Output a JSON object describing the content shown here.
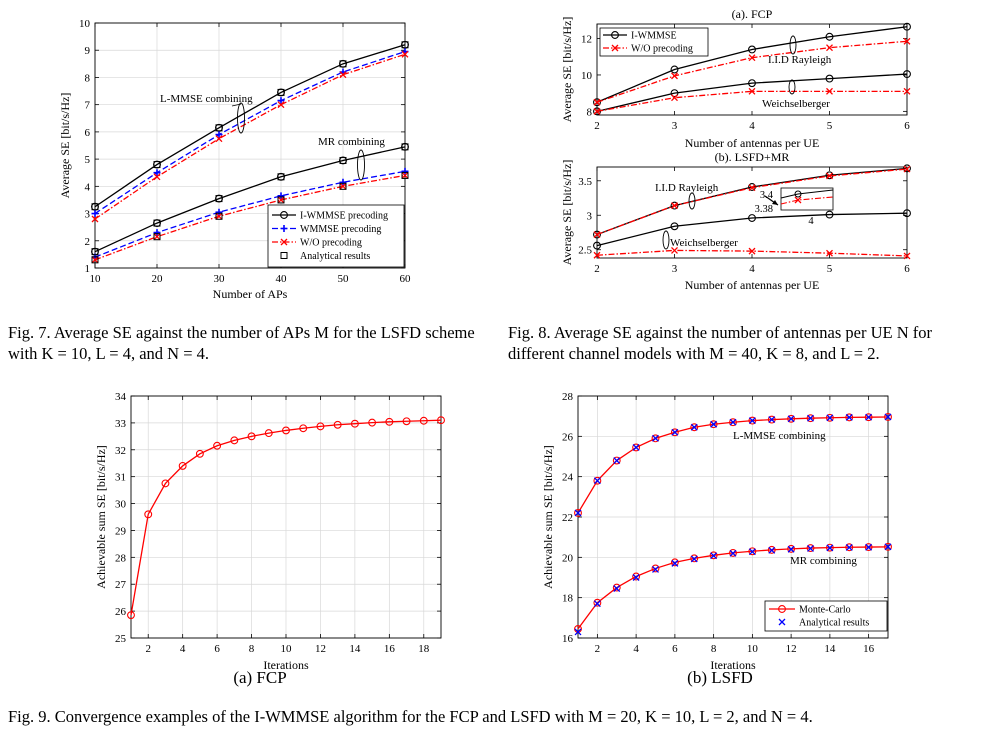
{
  "captions": {
    "fig7": "Fig. 7.  Average SE against the number of APs M for the LSFD scheme with K = 10, L = 4, and N = 4.",
    "fig8": "Fig. 8.  Average SE against the number of antennas per UE N for different channel models with M = 40, K = 8, and L = 2.",
    "fig9": "Fig. 9.  Convergence examples of the I-WMMSE algorithm for the FCP and LSFD with M = 20, K = 10, L = 2, and N = 4.",
    "fig9a": "(a)  FCP",
    "fig9b": "(b)  LSFD"
  },
  "colors": {
    "black": "#000000",
    "blue": "#0000ff",
    "red": "#ff0000"
  },
  "chart_data": [
    {
      "id": "fig7",
      "type": "line",
      "title": "",
      "xlabel": "Number of APs",
      "ylabel": "Average SE [bit/s/Hz]",
      "x": [
        10,
        20,
        30,
        40,
        50,
        60
      ],
      "xlim": [
        10,
        60
      ],
      "ylim": [
        1,
        10
      ],
      "xticks": [
        10,
        20,
        30,
        40,
        50,
        60
      ],
      "yticks": [
        1,
        2,
        3,
        4,
        5,
        6,
        7,
        8,
        9,
        10
      ],
      "grid": true,
      "legend": "bottom-right",
      "legend_entries": [
        "I-WMMSE precoding",
        "WMMSE precoding",
        "W/O precoding",
        "Analytical results"
      ],
      "annotations": [
        "L-MMSE combining",
        "MR combining"
      ],
      "series": [
        {
          "name": "I-WMMSE precoding",
          "group": "L-MMSE combining",
          "color": "#000000",
          "marker": "o",
          "dash": "solid",
          "values": [
            3.25,
            4.8,
            6.15,
            7.45,
            8.5,
            9.2
          ]
        },
        {
          "name": "WMMSE precoding",
          "group": "L-MMSE combining",
          "color": "#0000ff",
          "marker": "+",
          "dash": "dashed",
          "values": [
            3.0,
            4.5,
            5.9,
            7.15,
            8.2,
            8.95
          ]
        },
        {
          "name": "W/O precoding",
          "group": "L-MMSE combining",
          "color": "#ff0000",
          "marker": "x",
          "dash": "dashdot",
          "values": [
            2.8,
            4.35,
            5.75,
            7.0,
            8.1,
            8.85
          ]
        },
        {
          "name": "I-WMMSE precoding",
          "group": "MR combining",
          "color": "#000000",
          "marker": "o",
          "dash": "solid",
          "values": [
            1.6,
            2.65,
            3.55,
            4.35,
            4.95,
            5.45
          ]
        },
        {
          "name": "WMMSE precoding",
          "group": "MR combining",
          "color": "#0000ff",
          "marker": "+",
          "dash": "dashed",
          "values": [
            1.4,
            2.3,
            3.05,
            3.65,
            4.15,
            4.55
          ]
        },
        {
          "name": "W/O precoding",
          "group": "MR combining",
          "color": "#ff0000",
          "marker": "x",
          "dash": "dashdot",
          "values": [
            1.3,
            2.15,
            2.9,
            3.5,
            4.0,
            4.4
          ]
        }
      ],
      "analytical_markers": [
        {
          "name": "Analytical results",
          "values": [
            3.25,
            4.8,
            6.15,
            7.45,
            8.5,
            9.2
          ]
        },
        {
          "name": "Analytical results",
          "values": [
            1.6,
            2.65,
            3.55,
            4.35,
            4.95,
            5.45
          ]
        },
        {
          "name": "Analytical results",
          "values": [
            1.3,
            2.15,
            2.9,
            3.5,
            4.0,
            4.4
          ]
        }
      ]
    },
    {
      "id": "fig8a",
      "type": "line",
      "title": "(a).  FCP",
      "xlabel": "Number of antennas per UE",
      "ylabel": "Average SE [bit/s/Hz]",
      "x": [
        2,
        3,
        4,
        5,
        6
      ],
      "xlim": [
        2,
        6
      ],
      "ylim": [
        7.8,
        12.8
      ],
      "xticks": [
        2,
        3,
        4,
        5,
        6
      ],
      "yticks": [
        8,
        10,
        12
      ],
      "grid": false,
      "legend": "top-left",
      "legend_entries": [
        "I-WMMSE",
        "W/O precoding"
      ],
      "annotations": [
        "I.I.D Rayleigh",
        "Weichselberger"
      ],
      "series": [
        {
          "name": "I-WMMSE",
          "group": "I.I.D Rayleigh",
          "color": "#000000",
          "marker": "o",
          "dash": "solid",
          "values": [
            8.5,
            10.3,
            11.4,
            12.1,
            12.65
          ]
        },
        {
          "name": "W/O precoding",
          "group": "I.I.D Rayleigh",
          "color": "#ff0000",
          "marker": "x",
          "dash": "dashdot",
          "values": [
            8.5,
            9.95,
            10.95,
            11.5,
            11.85
          ]
        },
        {
          "name": "I-WMMSE",
          "group": "Weichselberger",
          "color": "#000000",
          "marker": "o",
          "dash": "solid",
          "values": [
            8.0,
            9.0,
            9.55,
            9.8,
            10.05
          ]
        },
        {
          "name": "W/O precoding",
          "group": "Weichselberger",
          "color": "#ff0000",
          "marker": "x",
          "dash": "dashdot",
          "values": [
            8.0,
            8.75,
            9.1,
            9.1,
            9.1
          ]
        }
      ]
    },
    {
      "id": "fig8b",
      "type": "line",
      "title": "(b).  LSFD+MR",
      "xlabel": "Number of antennas per UE",
      "ylabel": "Average SE [bit/s/Hz]",
      "x": [
        2,
        3,
        4,
        5,
        6
      ],
      "xlim": [
        2,
        6
      ],
      "ylim": [
        2.38,
        3.7
      ],
      "xticks": [
        2,
        3,
        4,
        5,
        6
      ],
      "yticks": [
        2.5,
        3,
        3.5
      ],
      "grid": false,
      "annotations": [
        "I.I.D Rayleigh",
        "Weichselberger"
      ],
      "inset": {
        "ytick_labels": [
          "3.4",
          "3.38"
        ],
        "xtick_label": "4"
      },
      "series": [
        {
          "name": "I-WMMSE",
          "group": "I.I.D Rayleigh",
          "color": "#000000",
          "marker": "o",
          "dash": "solid",
          "values": [
            2.72,
            3.14,
            3.41,
            3.58,
            3.68
          ]
        },
        {
          "name": "W/O precoding",
          "group": "I.I.D Rayleigh",
          "color": "#ff0000",
          "marker": "x",
          "dash": "dashdot",
          "values": [
            2.72,
            3.14,
            3.4,
            3.57,
            3.67
          ]
        },
        {
          "name": "I-WMMSE",
          "group": "Weichselberger",
          "color": "#000000",
          "marker": "o",
          "dash": "solid",
          "values": [
            2.56,
            2.84,
            2.96,
            3.01,
            3.03
          ]
        },
        {
          "name": "W/O precoding",
          "group": "Weichselberger",
          "color": "#ff0000",
          "marker": "x",
          "dash": "dashdot",
          "values": [
            2.42,
            2.49,
            2.48,
            2.45,
            2.41
          ]
        }
      ]
    },
    {
      "id": "fig9a",
      "type": "line",
      "title": "",
      "xlabel": "Iterations",
      "ylabel": "Achievable sum SE [bit/s/Hz]",
      "x": [
        1,
        2,
        3,
        4,
        5,
        6,
        7,
        8,
        9,
        10,
        11,
        12,
        13,
        14,
        15,
        16,
        17,
        18,
        19
      ],
      "xlim": [
        1,
        19
      ],
      "ylim": [
        25,
        34
      ],
      "xticks": [
        2,
        4,
        6,
        8,
        10,
        12,
        14,
        16,
        18
      ],
      "yticks": [
        25,
        26,
        27,
        28,
        29,
        30,
        31,
        32,
        33,
        34
      ],
      "grid": true,
      "series": [
        {
          "name": "",
          "color": "#ff0000",
          "marker": "o",
          "dash": "solid",
          "values": [
            25.85,
            29.6,
            30.75,
            31.4,
            31.85,
            32.15,
            32.35,
            32.5,
            32.62,
            32.72,
            32.8,
            32.87,
            32.93,
            32.97,
            33.01,
            33.04,
            33.06,
            33.08,
            33.1
          ]
        }
      ]
    },
    {
      "id": "fig9b",
      "type": "line",
      "title": "",
      "xlabel": "Iterations",
      "ylabel": "Achievable sum SE [bit/s/Hz]",
      "x": [
        1,
        2,
        3,
        4,
        5,
        6,
        7,
        8,
        9,
        10,
        11,
        12,
        13,
        14,
        15,
        16,
        17
      ],
      "xlim": [
        1,
        17
      ],
      "ylim": [
        16,
        28
      ],
      "xticks": [
        2,
        4,
        6,
        8,
        10,
        12,
        14,
        16
      ],
      "yticks": [
        16,
        18,
        20,
        22,
        24,
        26,
        28
      ],
      "grid": true,
      "legend": "bottom-right",
      "legend_entries": [
        "Monte-Carlo",
        "Analytical results"
      ],
      "annotations": [
        "L-MMSE combining",
        "MR combining"
      ],
      "series": [
        {
          "name": "Monte-Carlo",
          "group": "L-MMSE combining",
          "color": "#ff0000",
          "marker": "o",
          "dash": "solid",
          "values": [
            22.2,
            23.8,
            24.8,
            25.45,
            25.9,
            26.2,
            26.45,
            26.6,
            26.7,
            26.78,
            26.83,
            26.87,
            26.9,
            26.92,
            26.94,
            26.95,
            26.96
          ]
        },
        {
          "name": "Monte-Carlo",
          "group": "MR combining",
          "color": "#ff0000",
          "marker": "o",
          "dash": "solid",
          "values": [
            16.45,
            17.75,
            18.5,
            19.05,
            19.45,
            19.75,
            19.95,
            20.1,
            20.22,
            20.3,
            20.37,
            20.42,
            20.46,
            20.48,
            20.5,
            20.51,
            20.52
          ]
        },
        {
          "name": "Analytical results",
          "group": "L-MMSE combining",
          "color": "#0000ff",
          "marker": "x",
          "dash": "none",
          "values": [
            22.2,
            23.8,
            24.8,
            25.45,
            25.9,
            26.2,
            26.45,
            26.6,
            26.7,
            26.78,
            26.83,
            26.87,
            26.9,
            26.92,
            26.94,
            26.95,
            26.96
          ]
        },
        {
          "name": "Analytical results",
          "group": "MR combining",
          "color": "#0000ff",
          "marker": "x",
          "dash": "none",
          "values": [
            16.3,
            17.7,
            18.45,
            19.0,
            19.4,
            19.7,
            19.92,
            20.08,
            20.2,
            20.28,
            20.35,
            20.4,
            20.44,
            20.47,
            20.49,
            20.5,
            20.52
          ]
        }
      ]
    }
  ]
}
